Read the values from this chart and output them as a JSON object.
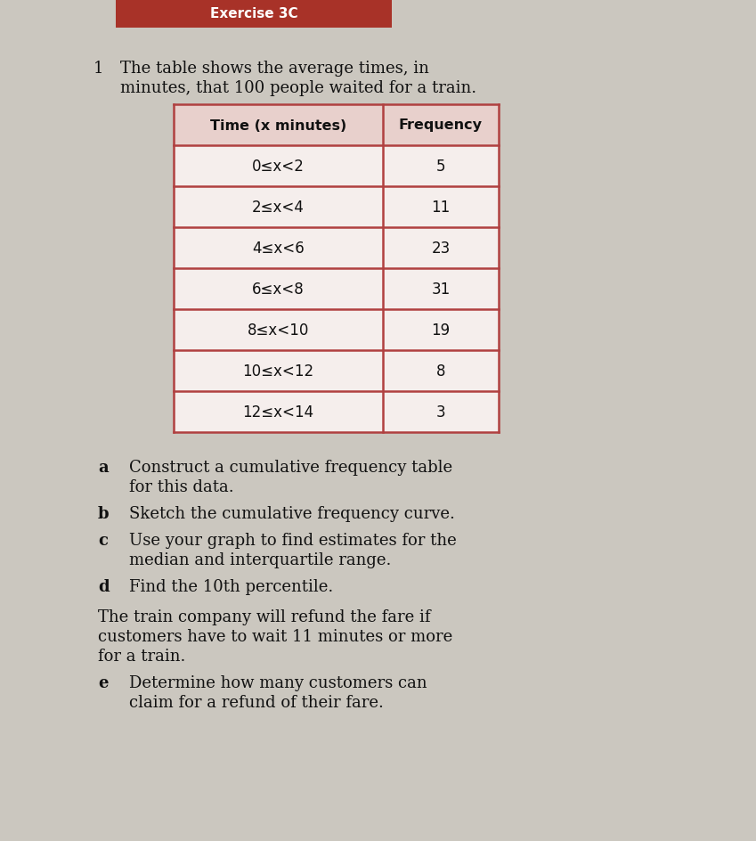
{
  "title_number": "1",
  "intro_text_line1": "The table shows the average times, in",
  "intro_text_line2": "minutes, that 100 people waited for a train.",
  "col1_header": "Time (x minutes)",
  "col2_header": "Frequency",
  "rows": [
    {
      "interval": "0≤x<2",
      "frequency": "5"
    },
    {
      "interval": "2≤x<4",
      "frequency": "11"
    },
    {
      "interval": "4≤x<6",
      "frequency": "23"
    },
    {
      "interval": "6≤x<8",
      "frequency": "31"
    },
    {
      "interval": "8≤x<10",
      "frequency": "19"
    },
    {
      "interval": "10≤x<12",
      "frequency": "8"
    },
    {
      "interval": "12≤x<14",
      "frequency": "3"
    }
  ],
  "questions": [
    {
      "label": "a",
      "lines": [
        "Construct a cumulative frequency table",
        "for this data."
      ]
    },
    {
      "label": "b",
      "lines": [
        "Sketch the cumulative frequency curve."
      ]
    },
    {
      "label": "c",
      "lines": [
        "Use your graph to find estimates for the",
        "median and interquartile range."
      ]
    },
    {
      "label": "d",
      "lines": [
        "Find the 10th percentile."
      ]
    }
  ],
  "paragraph_lines": [
    "The train company will refund the fare if",
    "customers have to wait 11 minutes or more",
    "for a train."
  ],
  "last_question_label": "e",
  "last_question_lines": [
    "Determine how many customers can",
    "claim for a refund of their fare."
  ],
  "header_strip_color": "#a83228",
  "header_strip_text": "Exercise 3C",
  "page_bg": "#cbc7bf",
  "table_border_color": "#b04040",
  "header_cell_bg": "#e8d0cc",
  "data_cell_bg": "#f5eeec",
  "text_color": "#111111",
  "header_text_color": "#ffffff",
  "figwidth": 8.49,
  "figheight": 9.45,
  "dpi": 100
}
